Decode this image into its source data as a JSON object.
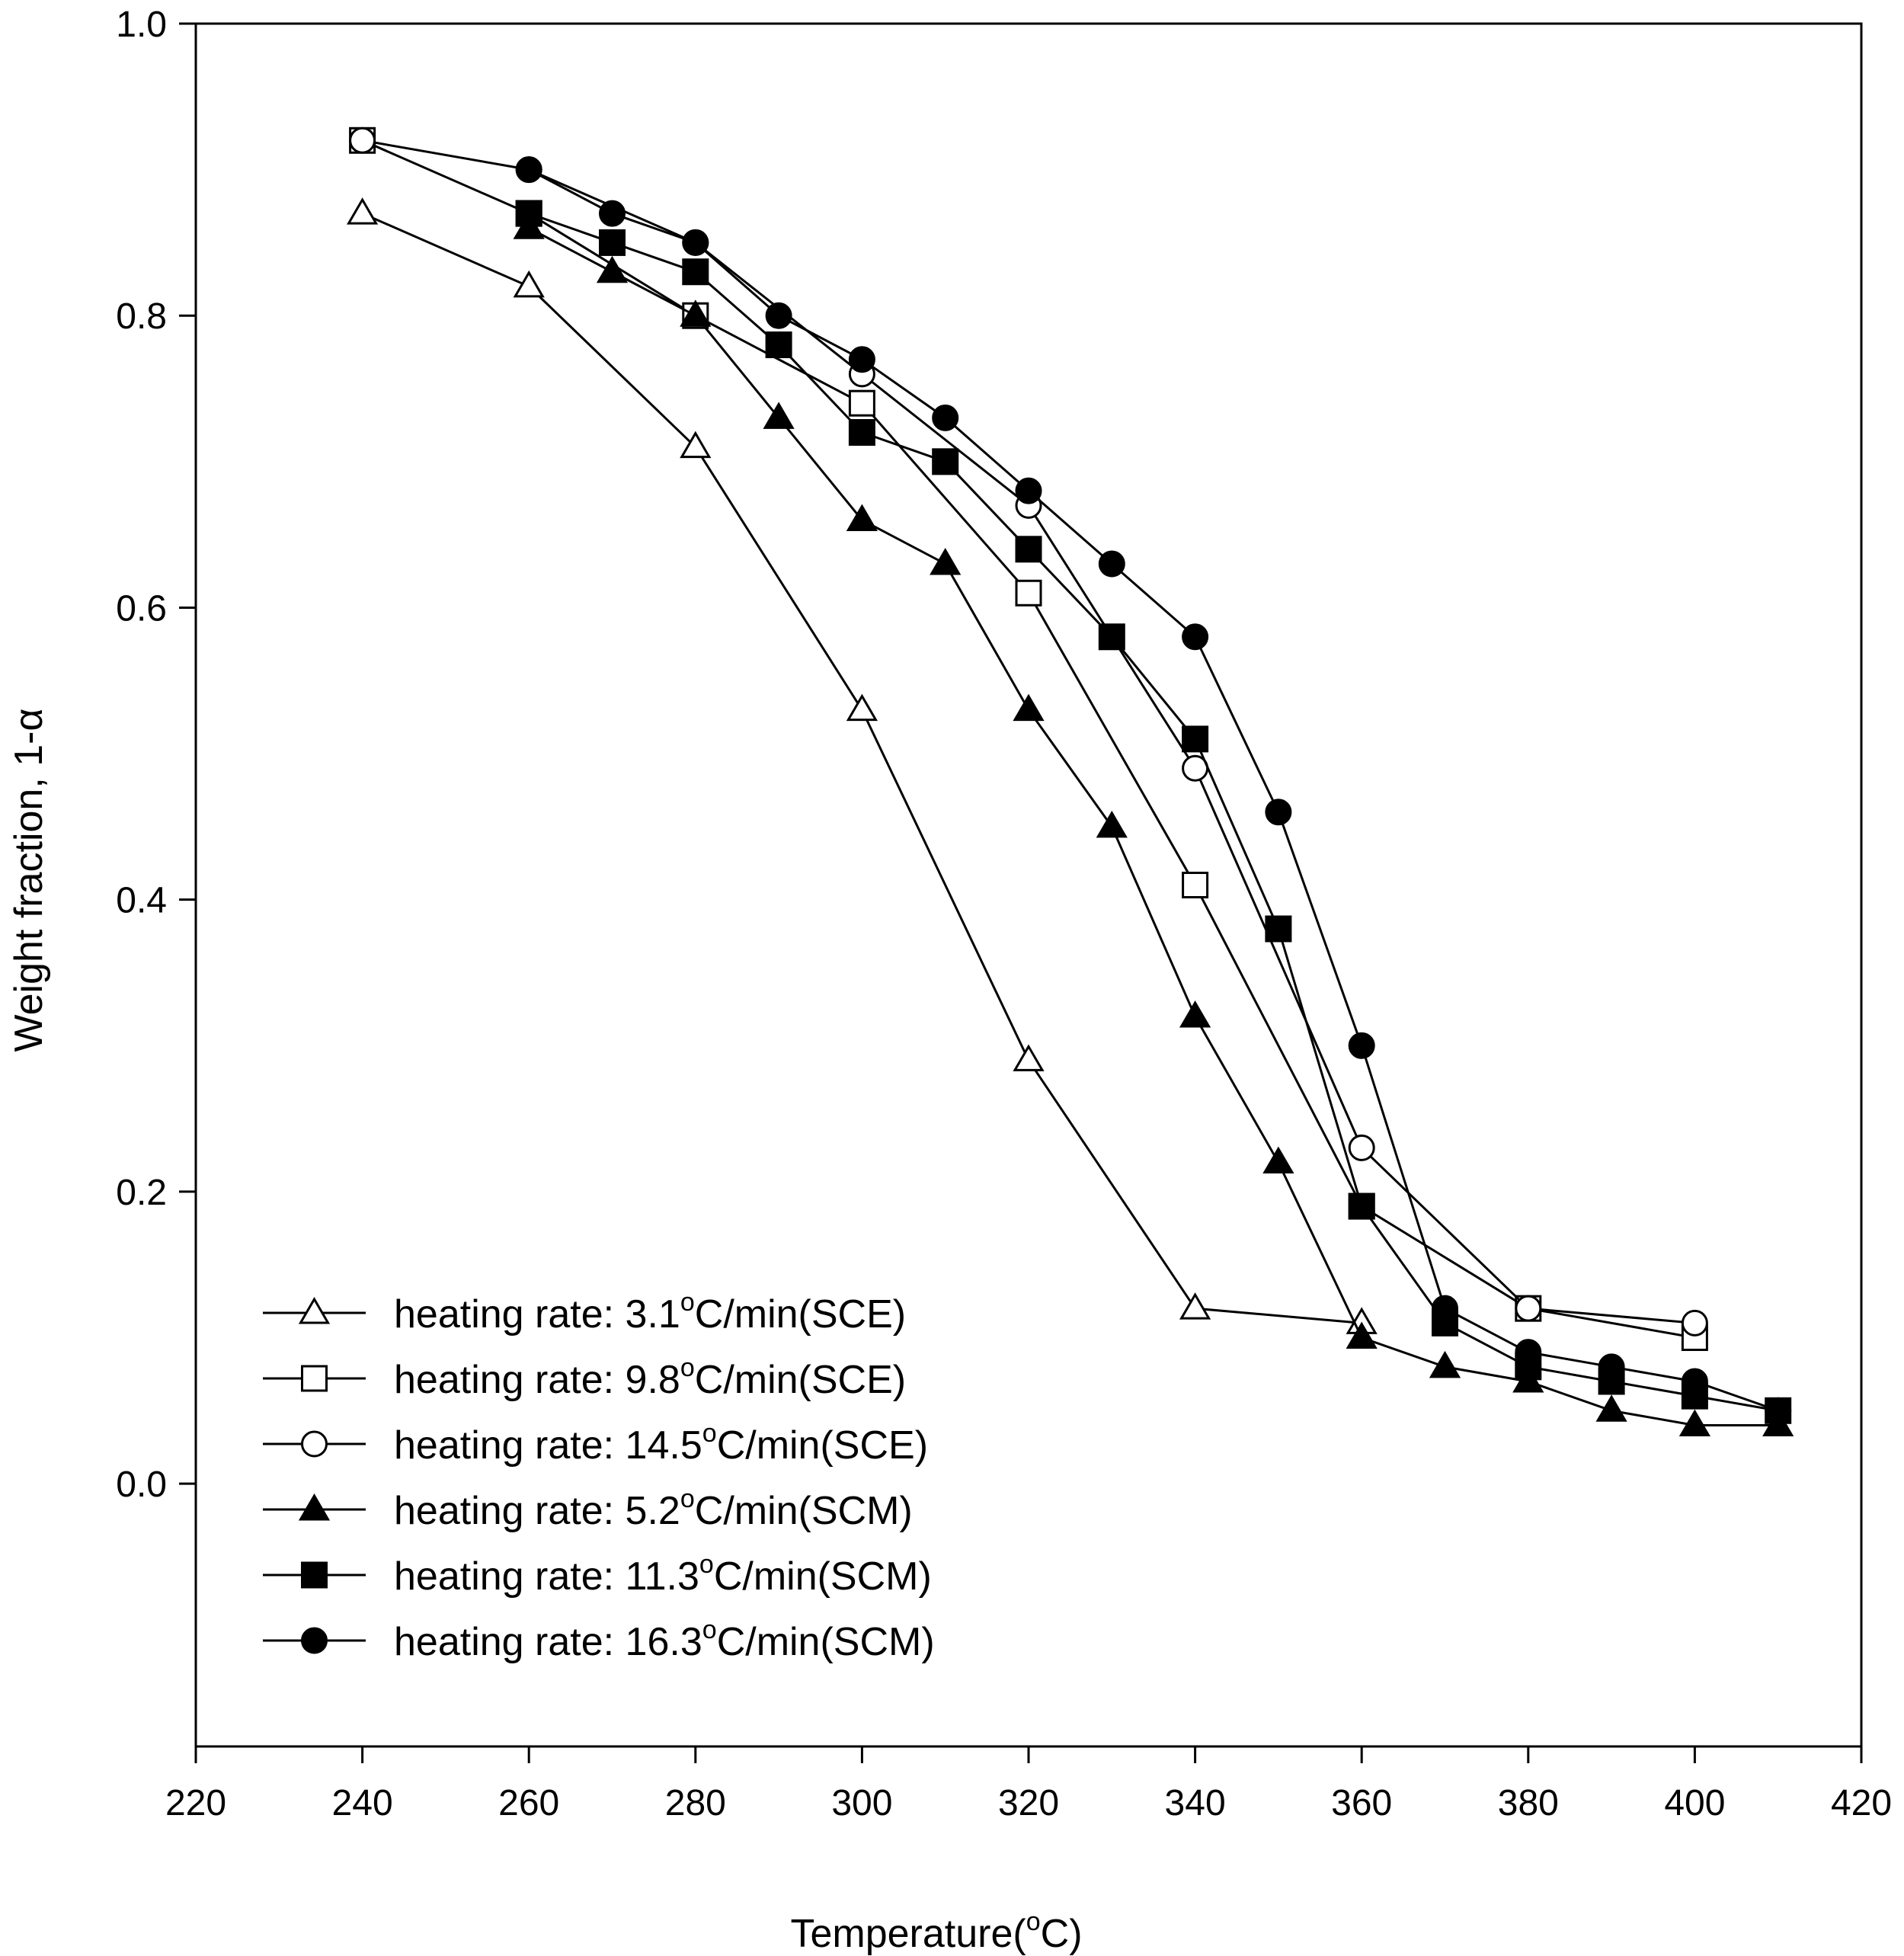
{
  "chart_data": {
    "type": "line",
    "xlabel": {
      "main": "Temperature(",
      "sup": "o",
      "post": "C)"
    },
    "ylabel": "Weight fraction, 1-α",
    "xlim": [
      220,
      420
    ],
    "ylim": [
      -0.18,
      1.0
    ],
    "xticks": [
      220,
      240,
      260,
      280,
      300,
      320,
      340,
      360,
      380,
      400,
      420
    ],
    "yticks": [
      0.0,
      0.2,
      0.4,
      0.6,
      0.8,
      1.0
    ],
    "ytick_labels": [
      "0.0",
      "0.2",
      "0.4",
      "0.6",
      "0.8",
      "1.0"
    ],
    "grid": false,
    "legend_position": "bottom-left",
    "series": [
      {
        "name": "heating rate:  3.1°C/min(SCE)",
        "label_pre": "heating rate:  3.1",
        "label_sup": "o",
        "label_post": "C/min(SCE)",
        "marker": "triangle",
        "filled": false,
        "x": [
          240,
          260,
          280,
          300,
          320,
          340,
          360
        ],
        "y": [
          0.87,
          0.82,
          0.71,
          0.53,
          0.29,
          0.12,
          0.11
        ]
      },
      {
        "name": "heating rate:  9.8°C/min(SCE)",
        "label_pre": "heating rate:  9.8",
        "label_sup": "o",
        "label_post": "C/min(SCE)",
        "marker": "square",
        "filled": false,
        "x": [
          240,
          260,
          280,
          300,
          320,
          340,
          360,
          380,
          400
        ],
        "y": [
          0.92,
          0.87,
          0.8,
          0.74,
          0.61,
          0.41,
          0.19,
          0.12,
          0.1
        ]
      },
      {
        "name": "heating rate:  14.5°C/min(SCE)",
        "label_pre": "heating rate:  14.5",
        "label_sup": "o",
        "label_post": "C/min(SCE)",
        "marker": "circle",
        "filled": false,
        "x": [
          240,
          260,
          280,
          300,
          320,
          340,
          360,
          380,
          400
        ],
        "y": [
          0.92,
          0.9,
          0.85,
          0.76,
          0.67,
          0.49,
          0.23,
          0.12,
          0.11
        ]
      },
      {
        "name": "heating rate:  5.2°C/min(SCM)",
        "label_pre": "heating rate:  5.2",
        "label_sup": "o",
        "label_post": "C/min(SCM)",
        "marker": "triangle",
        "filled": true,
        "x": [
          260,
          270,
          280,
          290,
          300,
          310,
          320,
          330,
          340,
          350,
          360,
          370,
          380,
          390,
          400,
          410
        ],
        "y": [
          0.86,
          0.83,
          0.8,
          0.73,
          0.66,
          0.63,
          0.53,
          0.45,
          0.32,
          0.22,
          0.1,
          0.08,
          0.07,
          0.05,
          0.04,
          0.04
        ]
      },
      {
        "name": "heating rate:  11.3°C/min(SCM)",
        "label_pre": "heating rate:  11.3",
        "label_sup": "o",
        "label_post": "C/min(SCM)",
        "marker": "square",
        "filled": true,
        "x": [
          260,
          270,
          280,
          290,
          300,
          310,
          320,
          330,
          340,
          350,
          360,
          370,
          380,
          390,
          400,
          410
        ],
        "y": [
          0.87,
          0.85,
          0.83,
          0.78,
          0.72,
          0.7,
          0.64,
          0.58,
          0.51,
          0.38,
          0.19,
          0.11,
          0.08,
          0.07,
          0.06,
          0.05
        ]
      },
      {
        "name": "heating rate:  16.3°C/min(SCM)",
        "label_pre": "heating rate:  16.3",
        "label_sup": "o",
        "label_post": "C/min(SCM)",
        "marker": "circle",
        "filled": true,
        "x": [
          260,
          270,
          280,
          290,
          300,
          310,
          320,
          330,
          340,
          350,
          360,
          370,
          380,
          390,
          400,
          410
        ],
        "y": [
          0.9,
          0.87,
          0.85,
          0.8,
          0.77,
          0.73,
          0.68,
          0.63,
          0.58,
          0.46,
          0.3,
          0.12,
          0.09,
          0.08,
          0.07,
          0.05
        ]
      }
    ]
  }
}
